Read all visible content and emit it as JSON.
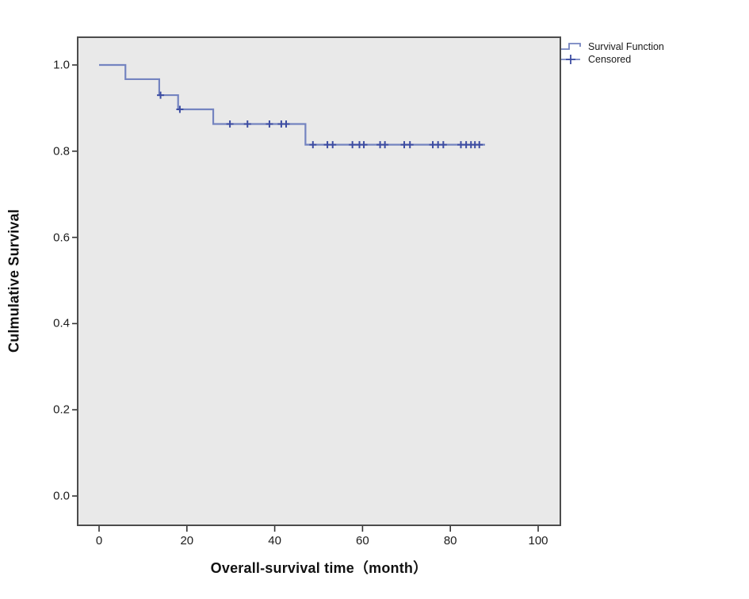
{
  "chart_data": {
    "type": "line",
    "subtype": "kaplan-meier-step-function",
    "title": "",
    "xlabel": "Overall-survival time（month）",
    "ylabel": "Culmulative Survival",
    "xlim": [
      -4.9,
      105.1
    ],
    "ylim": [
      -0.068,
      1.065
    ],
    "grid": "off",
    "legend_position": "top-right-outside",
    "x_ticks": [
      0,
      20,
      40,
      60,
      80,
      100
    ],
    "y_ticks": [
      1.0,
      0.8,
      0.6,
      0.4,
      0.2,
      0.0
    ],
    "legend": [
      {
        "label": "Survival Function",
        "glyph": "step-line"
      },
      {
        "label": "Censored",
        "glyph": "plus-on-line"
      }
    ],
    "series": [
      {
        "name": "Survival Function",
        "steps": [
          {
            "t": 0,
            "s": 1.0
          },
          {
            "t": 6,
            "s": 0.967
          },
          {
            "t": 13.7,
            "s": 0.93
          },
          {
            "t": 18,
            "s": 0.897
          },
          {
            "t": 26,
            "s": 0.863
          },
          {
            "t": 47,
            "s": 0.815
          }
        ],
        "end_time": 87.9
      }
    ],
    "censored_points": [
      {
        "t": 14.0,
        "s": 0.93
      },
      {
        "t": 18.4,
        "s": 0.897
      },
      {
        "t": 29.8,
        "s": 0.863
      },
      {
        "t": 33.8,
        "s": 0.863
      },
      {
        "t": 38.8,
        "s": 0.863
      },
      {
        "t": 41.5,
        "s": 0.863
      },
      {
        "t": 42.6,
        "s": 0.863
      },
      {
        "t": 48.7,
        "s": 0.815
      },
      {
        "t": 52.0,
        "s": 0.815
      },
      {
        "t": 53.2,
        "s": 0.815
      },
      {
        "t": 57.7,
        "s": 0.815
      },
      {
        "t": 59.3,
        "s": 0.815
      },
      {
        "t": 60.3,
        "s": 0.815
      },
      {
        "t": 64.0,
        "s": 0.815
      },
      {
        "t": 65.1,
        "s": 0.815
      },
      {
        "t": 69.5,
        "s": 0.815
      },
      {
        "t": 70.8,
        "s": 0.815
      },
      {
        "t": 76.0,
        "s": 0.815
      },
      {
        "t": 77.2,
        "s": 0.815
      },
      {
        "t": 78.4,
        "s": 0.815
      },
      {
        "t": 82.4,
        "s": 0.815
      },
      {
        "t": 83.6,
        "s": 0.815
      },
      {
        "t": 84.7,
        "s": 0.815
      },
      {
        "t": 85.6,
        "s": 0.815
      },
      {
        "t": 86.6,
        "s": 0.815
      }
    ],
    "colors": {
      "line": "#7484c0",
      "censor_mark": "#3d4da2",
      "plot_background": "#e9e9e9",
      "plot_border": "#4c4c4c",
      "tick": "#333333",
      "tick_label": "#1c1c1c",
      "axis_title": "#111111",
      "page_background": "#ffffff"
    }
  }
}
